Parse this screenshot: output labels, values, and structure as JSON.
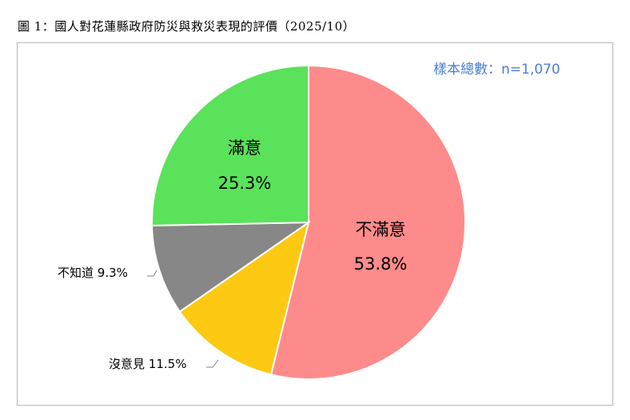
{
  "title": "圖 1：國人對花蓮縣政府防災與救災表現的評價（2025/10）",
  "sample_size": "樣本總數：n=1,070",
  "chart_data": {
    "type": "pie",
    "slices": [
      {
        "label": "不滿意",
        "value": 53.8,
        "display": "53.8%",
        "color": "#fe8b8b"
      },
      {
        "label": "沒意見",
        "value": 11.5,
        "display": "11.5%",
        "color": "#fdc913"
      },
      {
        "label": "不知道",
        "value": 9.3,
        "display": "9.3%",
        "color": "#878787"
      },
      {
        "label": "滿意",
        "value": 25.3,
        "display": "25.3%",
        "color": "#5ae25a"
      }
    ],
    "start_angle_deg": 0,
    "direction": "clockwise",
    "grid": false,
    "legend": "none"
  }
}
